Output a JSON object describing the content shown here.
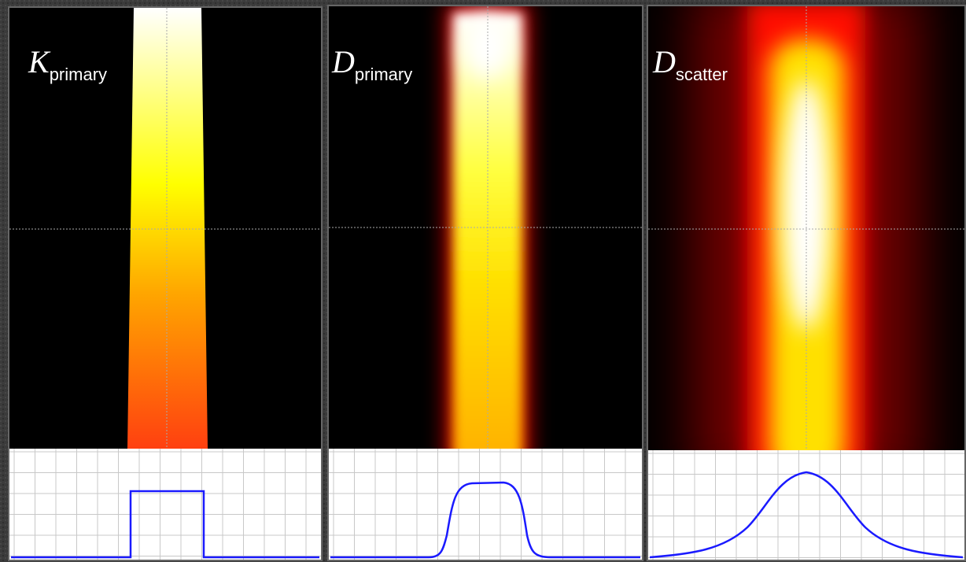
{
  "panels": [
    {
      "symbol": "K",
      "subscript": "primary"
    },
    {
      "symbol": "D",
      "subscript": "primary"
    },
    {
      "symbol": "D",
      "subscript": "scatter"
    }
  ]
}
